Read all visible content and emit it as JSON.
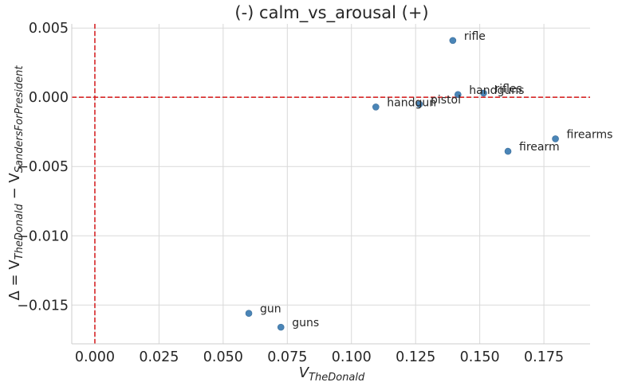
{
  "chart_data": {
    "type": "scatter",
    "title": "(-) calm_vs_arousal (+)",
    "xlabel": {
      "main": "V",
      "sub": "TheDonald"
    },
    "ylabel": {
      "prefix": "Δ = V",
      "sub1": "TheDonald",
      "middle": " − V",
      "sub2": "SandersForPresident"
    },
    "xlim": [
      -0.009,
      0.193
    ],
    "ylim": [
      -0.0178,
      0.0053
    ],
    "xticks": [
      0.0,
      0.025,
      0.05,
      0.075,
      0.1,
      0.125,
      0.15,
      0.175
    ],
    "xtick_labels": [
      "0.000",
      "0.025",
      "0.050",
      "0.075",
      "0.100",
      "0.125",
      "0.150",
      "0.175"
    ],
    "yticks": [
      0.005,
      0.0,
      -0.005,
      -0.01,
      -0.015
    ],
    "ytick_labels": [
      "0.005",
      "0.000",
      "−0.005",
      "−0.010",
      "−0.015"
    ],
    "grid": true,
    "reference_lines": {
      "x": 0.0,
      "y": 0.0,
      "color": "#d62728",
      "style": "dashed"
    },
    "point_color": "#3778b0",
    "points": [
      {
        "label": "rifle",
        "x": 0.1395,
        "y": 0.0041
      },
      {
        "label": "handguns",
        "x": 0.1415,
        "y": 0.0002
      },
      {
        "label": "rifles",
        "x": 0.1515,
        "y": 0.0003
      },
      {
        "label": "handgun",
        "x": 0.1095,
        "y": -0.0007
      },
      {
        "label": "pistol",
        "x": 0.1265,
        "y": -0.0005
      },
      {
        "label": "firearms",
        "x": 0.1795,
        "y": -0.003
      },
      {
        "label": "firearm",
        "x": 0.161,
        "y": -0.0039
      },
      {
        "label": "gun",
        "x": 0.06,
        "y": -0.0156
      },
      {
        "label": "guns",
        "x": 0.0725,
        "y": -0.0166
      }
    ]
  }
}
